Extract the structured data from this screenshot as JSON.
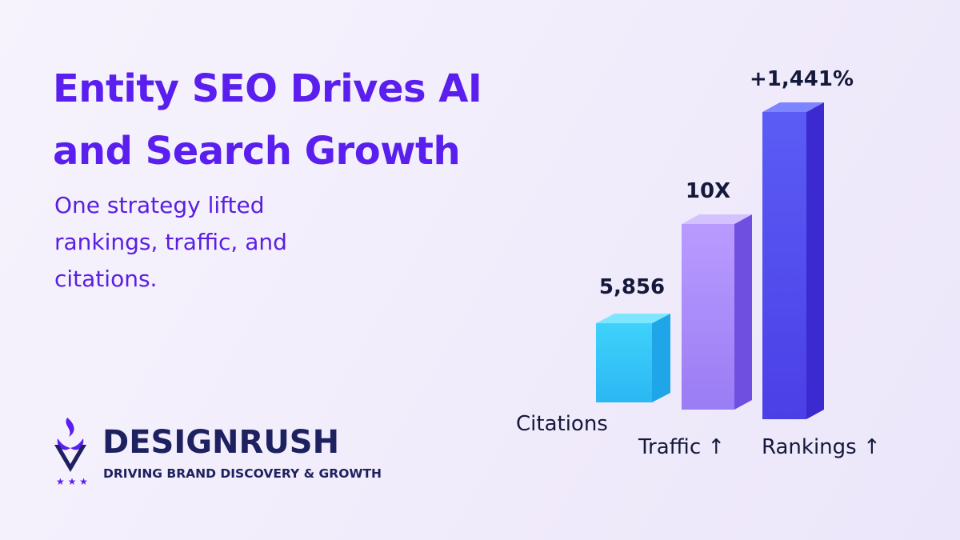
{
  "header": {
    "title": "Entity SEO Drives AI and Search Growth",
    "subtitle": "One strategy lifted rankings, traffic, and citations."
  },
  "bars": [
    {
      "label": "Citations",
      "value": "5,856"
    },
    {
      "label": "Traffic ↑",
      "value": "10X"
    },
    {
      "label": "Rankings ↑",
      "value": "+1,441%"
    }
  ],
  "logo": {
    "name": "DESIGNRUSH",
    "tagline": "DRIVING BRAND DISCOVERY & GROWTH"
  }
}
